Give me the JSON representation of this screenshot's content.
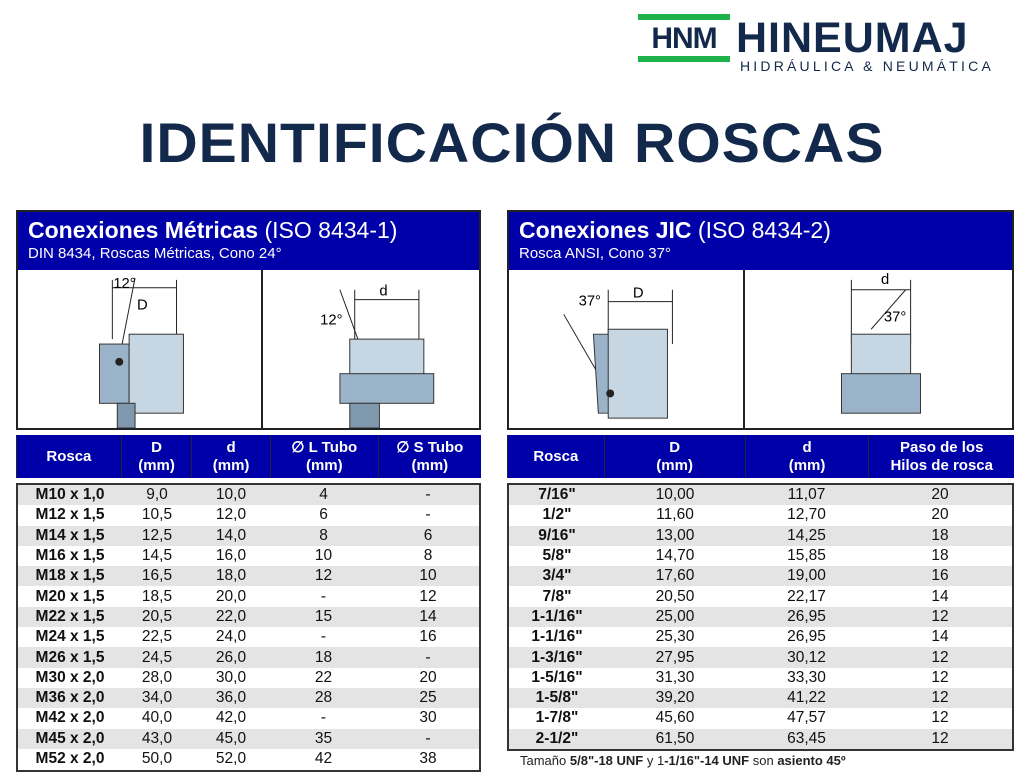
{
  "logo": {
    "mark": "HNM",
    "brand": "HINEUMAJ",
    "tagline": "HIDRÁULICA & NEUMÁTICA"
  },
  "title": "IDENTIFICACIÓN ROSCAS",
  "colors": {
    "navy": "#13294b",
    "green": "#1fb24a",
    "header_blue": "#0000a8",
    "row_gray": "#e4e4e4"
  },
  "metric": {
    "title_bold": "Conexiones Métricas",
    "title_rest": " (ISO 8434-1)",
    "subtitle": "DIN 8434, Roscas Métricas, Cono 24°",
    "diagram1": {
      "angle": "12°",
      "dim": "D"
    },
    "diagram2": {
      "angle": "12°",
      "dim": "d"
    },
    "columns": [
      [
        "Rosca",
        ""
      ],
      [
        "D",
        "(mm)"
      ],
      [
        "d",
        "(mm)"
      ],
      [
        "∅ L Tubo",
        "(mm)"
      ],
      [
        "∅ S Tubo",
        "(mm)"
      ]
    ],
    "rows": [
      [
        "M10 x 1,0",
        "9,0",
        "10,0",
        "4",
        "-"
      ],
      [
        "M12 x 1,5",
        "10,5",
        "12,0",
        "6",
        "-"
      ],
      [
        "M14 x 1,5",
        "12,5",
        "14,0",
        "8",
        "6"
      ],
      [
        "M16 x 1,5",
        "14,5",
        "16,0",
        "10",
        "8"
      ],
      [
        "M18 x 1,5",
        "16,5",
        "18,0",
        "12",
        "10"
      ],
      [
        "M20 x 1,5",
        "18,5",
        "20,0",
        "-",
        "12"
      ],
      [
        "M22 x 1,5",
        "20,5",
        "22,0",
        "15",
        "14"
      ],
      [
        "M24 x 1,5",
        "22,5",
        "24,0",
        "-",
        "16"
      ],
      [
        "M26 x 1,5",
        "24,5",
        "26,0",
        "18",
        "-"
      ],
      [
        "M30 x 2,0",
        "28,0",
        "30,0",
        "22",
        "20"
      ],
      [
        "M36 x 2,0",
        "34,0",
        "36,0",
        "28",
        "25"
      ],
      [
        "M42 x 2,0",
        "40,0",
        "42,0",
        "-",
        "30"
      ],
      [
        "M45 x 2,0",
        "43,0",
        "45,0",
        "35",
        "-"
      ],
      [
        "M52 x 2,0",
        "50,0",
        "52,0",
        "42",
        "38"
      ]
    ]
  },
  "jic": {
    "title_bold": "Conexiones JIC",
    "title_rest": " (ISO 8434-2)",
    "subtitle": "Rosca ANSI, Cono 37°",
    "diagram1": {
      "angle": "37°",
      "dim": "D"
    },
    "diagram2": {
      "angle": "37°",
      "dim": "d"
    },
    "columns": [
      [
        "Rosca",
        ""
      ],
      [
        "D",
        "(mm)"
      ],
      [
        "d",
        "(mm)"
      ],
      [
        "Paso de los",
        "Hilos de rosca"
      ]
    ],
    "rows": [
      [
        "7/16\"",
        "10,00",
        "11,07",
        "20"
      ],
      [
        "1/2\"",
        "11,60",
        "12,70",
        "20"
      ],
      [
        "9/16\"",
        "13,00",
        "14,25",
        "18"
      ],
      [
        "5/8\"",
        "14,70",
        "15,85",
        "18"
      ],
      [
        "3/4\"",
        "17,60",
        "19,00",
        "16"
      ],
      [
        "7/8\"",
        "20,50",
        "22,17",
        "14"
      ],
      [
        "1-1/16\"",
        "25,00",
        "26,95",
        "12"
      ],
      [
        "1-1/16\"",
        "25,30",
        "26,95",
        "14"
      ],
      [
        "1-3/16\"",
        "27,95",
        "30,12",
        "12"
      ],
      [
        "1-5/16\"",
        "31,30",
        "33,30",
        "12"
      ],
      [
        "1-5/8\"",
        "39,20",
        "41,22",
        "12"
      ],
      [
        "1-7/8\"",
        "45,60",
        "47,57",
        "12"
      ],
      [
        "2-1/2\"",
        "61,50",
        "63,45",
        "12"
      ]
    ],
    "note": {
      "a": "Tamaño ",
      "b": "5/8\"-18 UNF",
      "c": " y 1",
      "d": "-1/16\"-14 UNF",
      "e": " son ",
      "f": "asiento 45º"
    }
  }
}
